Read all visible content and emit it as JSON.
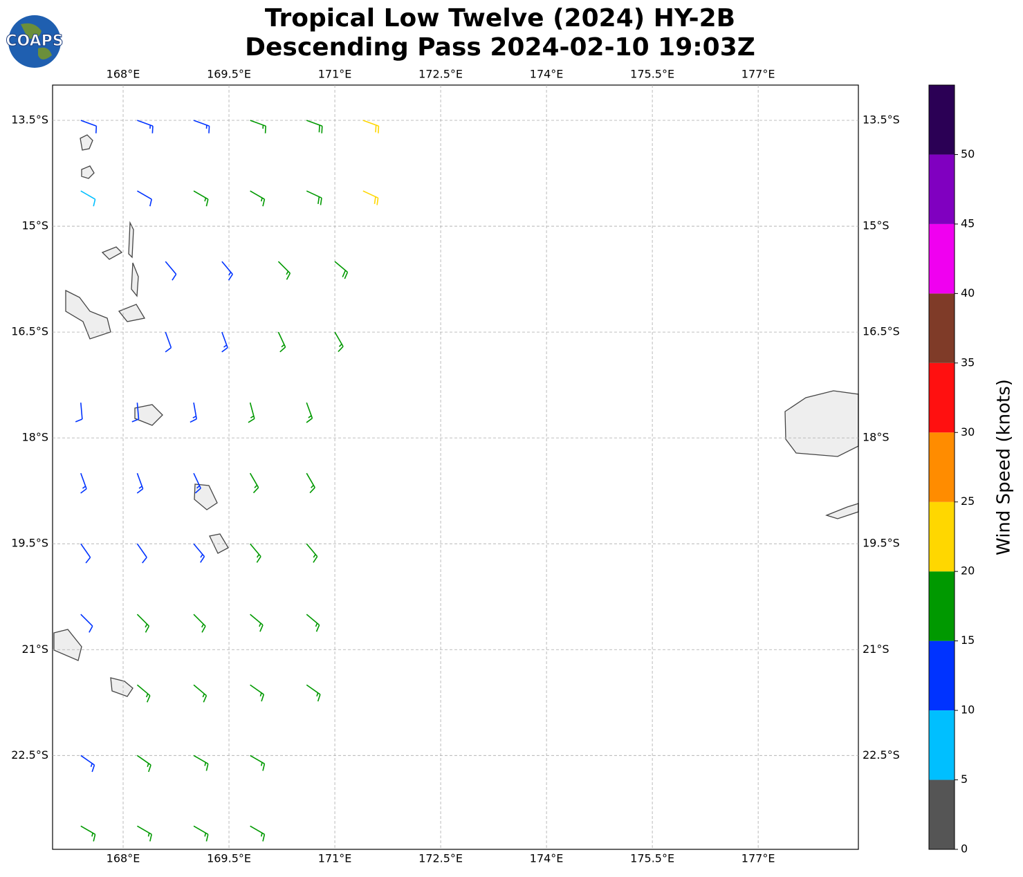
{
  "chart_data": {
    "type": "barbs",
    "title": "Tropical Low Twelve (2024) HY-2B",
    "subtitle": "Descending Pass 2024-02-10 19:03Z",
    "logo_text": "COAPS",
    "xlim": [
      167,
      178.42
    ],
    "ylim": [
      -23.83,
      -13
    ],
    "xticks": [
      {
        "value": 168,
        "label": "168°E"
      },
      {
        "value": 169.5,
        "label": "169.5°E"
      },
      {
        "value": 171,
        "label": "171°E"
      },
      {
        "value": 172.5,
        "label": "172.5°E"
      },
      {
        "value": 174,
        "label": "174°E"
      },
      {
        "value": 175.5,
        "label": "175.5°E"
      },
      {
        "value": 177,
        "label": "177°E"
      }
    ],
    "yticks": [
      {
        "value": -13.5,
        "label": "13.5°S"
      },
      {
        "value": -15,
        "label": "15°S"
      },
      {
        "value": -16.5,
        "label": "16.5°S"
      },
      {
        "value": -18,
        "label": "18°S"
      },
      {
        "value": -19.5,
        "label": "19.5°S"
      },
      {
        "value": -21,
        "label": "21°S"
      },
      {
        "value": -22.5,
        "label": "22.5°S"
      }
    ],
    "grid": true,
    "barbs": [
      [
        167.4,
        -13.5,
        12,
        110
      ],
      [
        168.2,
        -13.5,
        13,
        110
      ],
      [
        169.0,
        -13.5,
        14,
        110
      ],
      [
        169.8,
        -13.5,
        17,
        110
      ],
      [
        170.6,
        -13.5,
        19,
        110
      ],
      [
        171.4,
        -13.5,
        22,
        110
      ],
      [
        167.4,
        -14.5,
        8,
        120
      ],
      [
        168.2,
        -14.5,
        12,
        120
      ],
      [
        169.0,
        -14.5,
        16,
        120
      ],
      [
        169.8,
        -14.5,
        17,
        120
      ],
      [
        170.6,
        -14.5,
        19,
        115
      ],
      [
        171.4,
        -14.5,
        22,
        115
      ],
      [
        168.6,
        -15.5,
        12,
        140
      ],
      [
        169.4,
        -15.5,
        13,
        140
      ],
      [
        170.2,
        -15.5,
        17,
        135
      ],
      [
        171.0,
        -15.5,
        19,
        130
      ],
      [
        168.6,
        -16.5,
        12,
        160
      ],
      [
        169.4,
        -16.5,
        14,
        160
      ],
      [
        170.2,
        -16.5,
        17,
        155
      ],
      [
        171.0,
        -16.5,
        16,
        150
      ],
      [
        167.4,
        -17.5,
        12,
        175
      ],
      [
        168.2,
        -17.5,
        12,
        175
      ],
      [
        169.0,
        -17.5,
        13,
        170
      ],
      [
        169.8,
        -17.5,
        16,
        165
      ],
      [
        170.6,
        -17.5,
        17,
        160
      ],
      [
        167.4,
        -18.5,
        13,
        160
      ],
      [
        168.2,
        -18.5,
        13,
        160
      ],
      [
        169.0,
        -18.5,
        13,
        155
      ],
      [
        169.8,
        -18.5,
        17,
        150
      ],
      [
        170.6,
        -18.5,
        17,
        150
      ],
      [
        167.4,
        -19.5,
        12,
        145
      ],
      [
        168.2,
        -19.5,
        12,
        145
      ],
      [
        169.0,
        -19.5,
        13,
        140
      ],
      [
        169.8,
        -19.5,
        16,
        140
      ],
      [
        170.6,
        -19.5,
        17,
        140
      ],
      [
        167.4,
        -20.5,
        12,
        135
      ],
      [
        168.2,
        -20.5,
        16,
        135
      ],
      [
        169.0,
        -20.5,
        17,
        135
      ],
      [
        169.8,
        -20.5,
        17,
        130
      ],
      [
        170.6,
        -20.5,
        17,
        130
      ],
      [
        168.2,
        -21.5,
        17,
        130
      ],
      [
        169.0,
        -21.5,
        16,
        130
      ],
      [
        169.8,
        -21.5,
        17,
        125
      ],
      [
        170.6,
        -21.5,
        17,
        125
      ],
      [
        167.4,
        -22.5,
        13,
        125
      ],
      [
        168.2,
        -22.5,
        17,
        125
      ],
      [
        169.0,
        -22.5,
        17,
        120
      ],
      [
        169.8,
        -22.5,
        17,
        120
      ],
      [
        167.4,
        -23.5,
        17,
        120
      ],
      [
        168.2,
        -23.5,
        17,
        120
      ],
      [
        169.0,
        -23.5,
        17,
        120
      ],
      [
        169.8,
        -23.5,
        17,
        120
      ]
    ],
    "colorbar": {
      "label": "Wind Speed (knots)",
      "bounds": [
        0,
        5,
        10,
        15,
        20,
        25,
        30,
        35,
        40,
        45,
        50,
        55
      ],
      "colors": [
        "#555555",
        "#00bfff",
        "#0033ff",
        "#009900",
        "#ffd700",
        "#ff8c00",
        "#ff1010",
        "#7f3b28",
        "#f000f0",
        "#8000c0",
        "#2b0055"
      ],
      "ticks": [
        0,
        5,
        10,
        15,
        20,
        25,
        30,
        35,
        40,
        45,
        50
      ]
    }
  }
}
